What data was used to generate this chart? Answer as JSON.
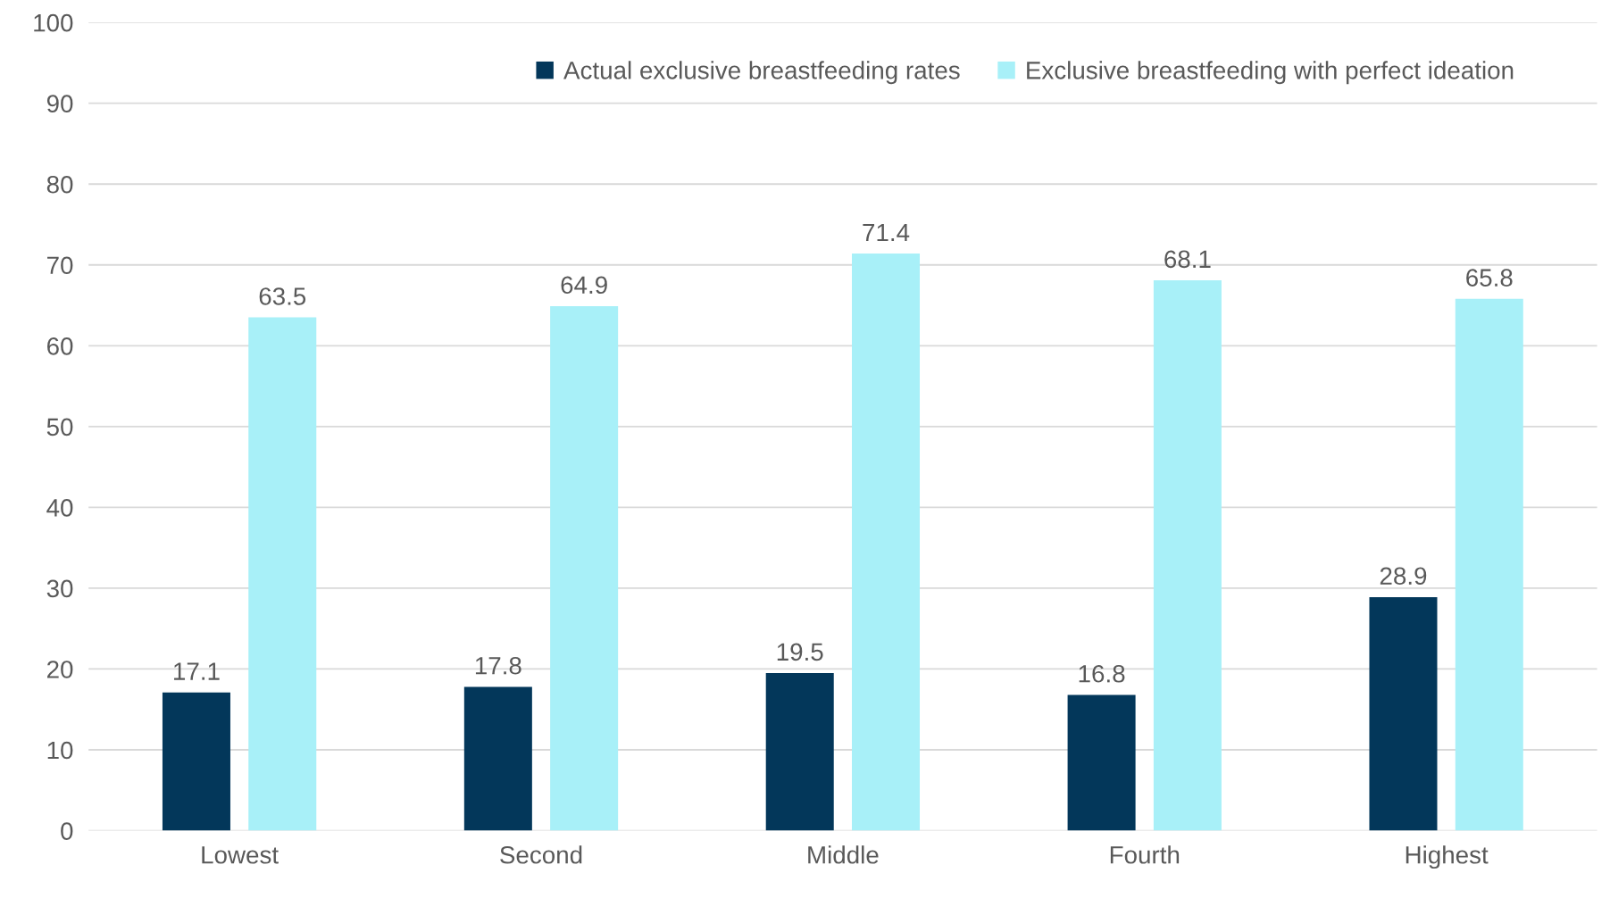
{
  "chart_data": {
    "type": "bar",
    "categories": [
      "Lowest",
      "Second",
      "Middle",
      "Fourth",
      "Highest"
    ],
    "series": [
      {
        "name": "Actual exclusive breastfeeding rates",
        "color": "#03375a",
        "values": [
          17.1,
          17.8,
          19.5,
          16.8,
          28.9
        ]
      },
      {
        "name": "Exclusive breastfeeding with perfect ideation",
        "color": "#a8f0f8",
        "values": [
          63.5,
          64.9,
          71.4,
          68.1,
          65.8
        ]
      }
    ],
    "ylim": [
      0,
      100
    ],
    "yticks": [
      0,
      10,
      20,
      30,
      40,
      50,
      60,
      70,
      80,
      90,
      100
    ],
    "grid": "y",
    "legend": "top right",
    "data_labels": true
  }
}
